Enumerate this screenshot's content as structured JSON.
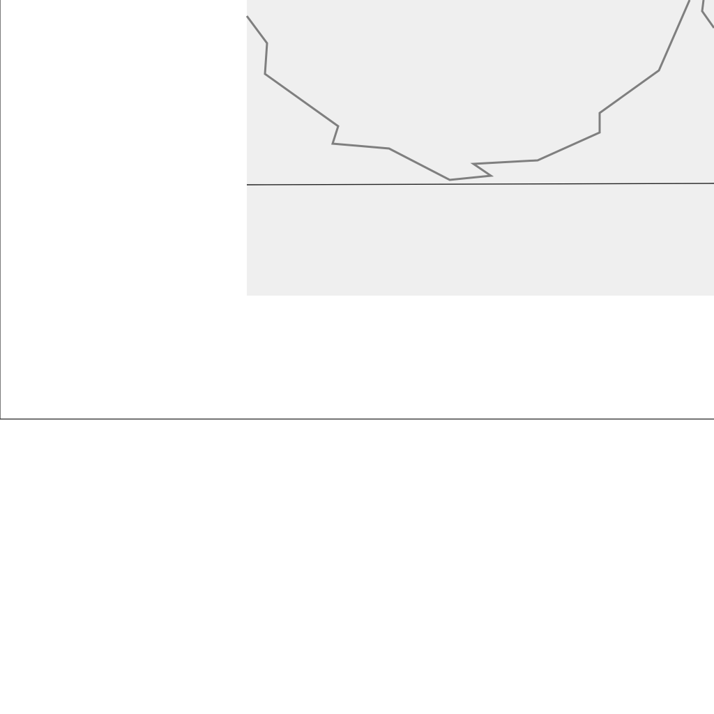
{
  "diagram": {
    "type": "cropped-outline-diagram",
    "colors": {
      "page_background": "#ffffff",
      "panel_fill": "#efefef",
      "frame_stroke": "#222222",
      "outline_stroke": "#7f7f7f"
    }
  }
}
